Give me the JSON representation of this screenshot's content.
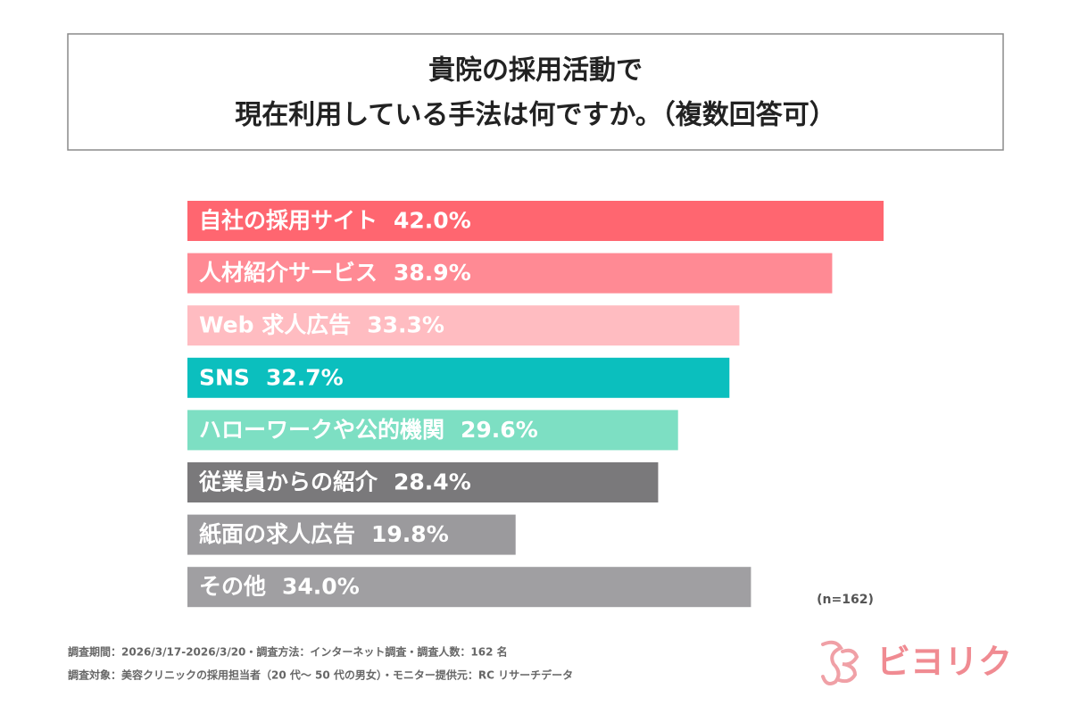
{
  "chart_data": {
    "type": "bar",
    "title": [
      "貴院の採用活動で",
      "現在利用している手法は何ですか。（複数回答可）"
    ],
    "categories": [
      "自社の採用サイト",
      "人材紹介サービス",
      "Web 求人広告",
      "SNS",
      "ハローワークや公的機関",
      "従業員からの紹介",
      "紙面の求人広告",
      "その他"
    ],
    "values": [
      42.0,
      38.9,
      33.3,
      32.7,
      29.6,
      28.4,
      19.8,
      34.0
    ],
    "value_labels": [
      "42.0%",
      "38.9%",
      "33.3%",
      "32.7%",
      "29.6%",
      "28.4%",
      "19.8%",
      "34.0%"
    ],
    "colors": [
      "#ff6670",
      "#ff8a94",
      "#ffbcc1",
      "#0bbfbe",
      "#7ddfc3",
      "#7a797b",
      "#9b9a9d",
      "#a09fa2"
    ],
    "note": "(n=162)",
    "footnotes": [
      "調査期間：2026/3/17-2026/3/20・調査方法：インターネット調査・調査人数：162 名",
      "調査対象：美容クリニックの採用担当者（20 代〜 50 代の男女）・モニター提供元：RC リサーチデータ"
    ],
    "logo": "ビヨリク"
  }
}
